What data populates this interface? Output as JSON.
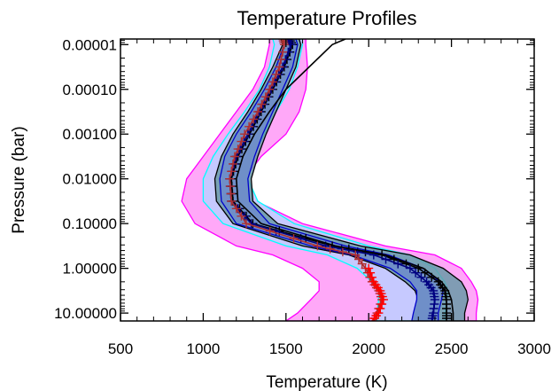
{
  "chart_data": {
    "type": "line",
    "title": "Temperature Profiles",
    "xlabel": "Temperature (K)",
    "ylabel": "Pressure (bar)",
    "x_scale": "linear",
    "y_scale": "log",
    "y_inverted": true,
    "xlim": [
      500,
      3000
    ],
    "ylim": [
      7.5e-06,
      15
    ],
    "x_ticks": [
      {
        "value": 500,
        "label": "500"
      },
      {
        "value": 1000,
        "label": "1000"
      },
      {
        "value": 1500,
        "label": "1500"
      },
      {
        "value": 2000,
        "label": "2000"
      },
      {
        "value": 2500,
        "label": "2500"
      },
      {
        "value": 3000,
        "label": "3000"
      }
    ],
    "y_ticks": [
      {
        "value": 1e-05,
        "label": "0.00001"
      },
      {
        "value": 0.0001,
        "label": "0.00010"
      },
      {
        "value": 0.001,
        "label": "0.00100"
      },
      {
        "value": 0.01,
        "label": "0.01000"
      },
      {
        "value": 0.1,
        "label": "0.10000"
      },
      {
        "value": 1,
        "label": "1.00000"
      },
      {
        "value": 10,
        "label": "10.00000"
      }
    ],
    "grid": false,
    "legend": "none",
    "pressure_levels": [
      7.5e-06,
      1e-05,
      3.16e-05,
      0.0001,
      0.000316,
      0.001,
      0.00316,
      0.01,
      0.0316,
      0.1,
      0.316,
      0.5,
      1,
      2,
      3.16,
      5,
      10,
      15
    ],
    "bands": [
      {
        "color": "#ff00ff",
        "fill": "#ffa8f8",
        "lower": [
          1400,
          1400,
          1370,
          1300,
          1200,
          1100,
          1000,
          900,
          870,
          950,
          1200,
          1420,
          1600,
          1700,
          1700,
          1650,
          1570,
          1500
        ],
        "upper": [
          1620,
          1620,
          1630,
          1620,
          1580,
          1500,
          1350,
          1250,
          1320,
          1600,
          2100,
          2400,
          2560,
          2620,
          2650,
          2660,
          2650,
          2650
        ]
      },
      {
        "color": "#00ffff",
        "fill": "#c6c9ff",
        "lower": [
          1420,
          1430,
          1400,
          1340,
          1250,
          1150,
          1060,
          1000,
          1000,
          1120,
          1500,
          1750,
          1930,
          2020,
          2060,
          2060,
          2050,
          2050
        ],
        "upper": [
          1600,
          1600,
          1570,
          1520,
          1440,
          1370,
          1300,
          1270,
          1330,
          1550,
          2000,
          2250,
          2400,
          2460,
          2480,
          2470,
          2460,
          2460
        ]
      },
      {
        "color": "#000000",
        "fill": "#6a9aa8",
        "lower": [
          1470,
          1480,
          1420,
          1350,
          1270,
          1180,
          1110,
          1070,
          1080,
          1180,
          1600,
          1880,
          2100,
          2220,
          2280,
          2300,
          2320,
          2330
        ],
        "upper": [
          1580,
          1590,
          1560,
          1500,
          1440,
          1380,
          1330,
          1290,
          1300,
          1450,
          1950,
          2250,
          2450,
          2560,
          2590,
          2600,
          2580,
          2580
        ]
      },
      {
        "color": "#0000cc",
        "fill": "#6f8fc8",
        "lower": [
          1480,
          1490,
          1440,
          1370,
          1290,
          1200,
          1130,
          1100,
          1110,
          1200,
          1650,
          1900,
          2130,
          2250,
          2290,
          2290,
          2270,
          2260
        ],
        "upper": [
          1560,
          1570,
          1540,
          1480,
          1420,
          1360,
          1310,
          1270,
          1280,
          1400,
          1860,
          2120,
          2330,
          2430,
          2450,
          2440,
          2420,
          2420
        ]
      }
    ],
    "series": [
      {
        "color": "#000000",
        "marker": "plus",
        "values": [
          1520,
          1540,
          1490,
          1420,
          1350,
          1280,
          1210,
          1170,
          1180,
          1300,
          1780,
          2080,
          2300,
          2420,
          2460,
          2470,
          2470,
          2470
        ]
      },
      {
        "color": "#000080",
        "marker": "plus",
        "values": [
          1510,
          1530,
          1480,
          1410,
          1340,
          1270,
          1200,
          1160,
          1170,
          1290,
          1740,
          2030,
          2250,
          2350,
          2390,
          2400,
          2390,
          2380
        ]
      },
      {
        "color": "#b03030",
        "marker": "plus",
        "values": [
          1480,
          1490,
          1460,
          1400,
          1330,
          1250,
          1190,
          1160,
          1170,
          1260,
          1690,
          1920,
          1980,
          2020,
          2060,
          2080,
          2050,
          2030
        ]
      },
      {
        "color": "#ff0000",
        "marker": "plus",
        "values": [
          null,
          null,
          null,
          null,
          null,
          null,
          null,
          null,
          null,
          null,
          null,
          null,
          2000,
          2030,
          2070,
          2090,
          2060,
          2020
        ]
      },
      {
        "color": "#000000",
        "marker": "none",
        "values": [
          1860,
          1780,
          1640,
          1500,
          1400,
          1310,
          1240,
          1200,
          1210,
          1350,
          1800,
          2100,
          2330,
          2440,
          2480,
          2500,
          2510,
          2510
        ]
      }
    ]
  }
}
